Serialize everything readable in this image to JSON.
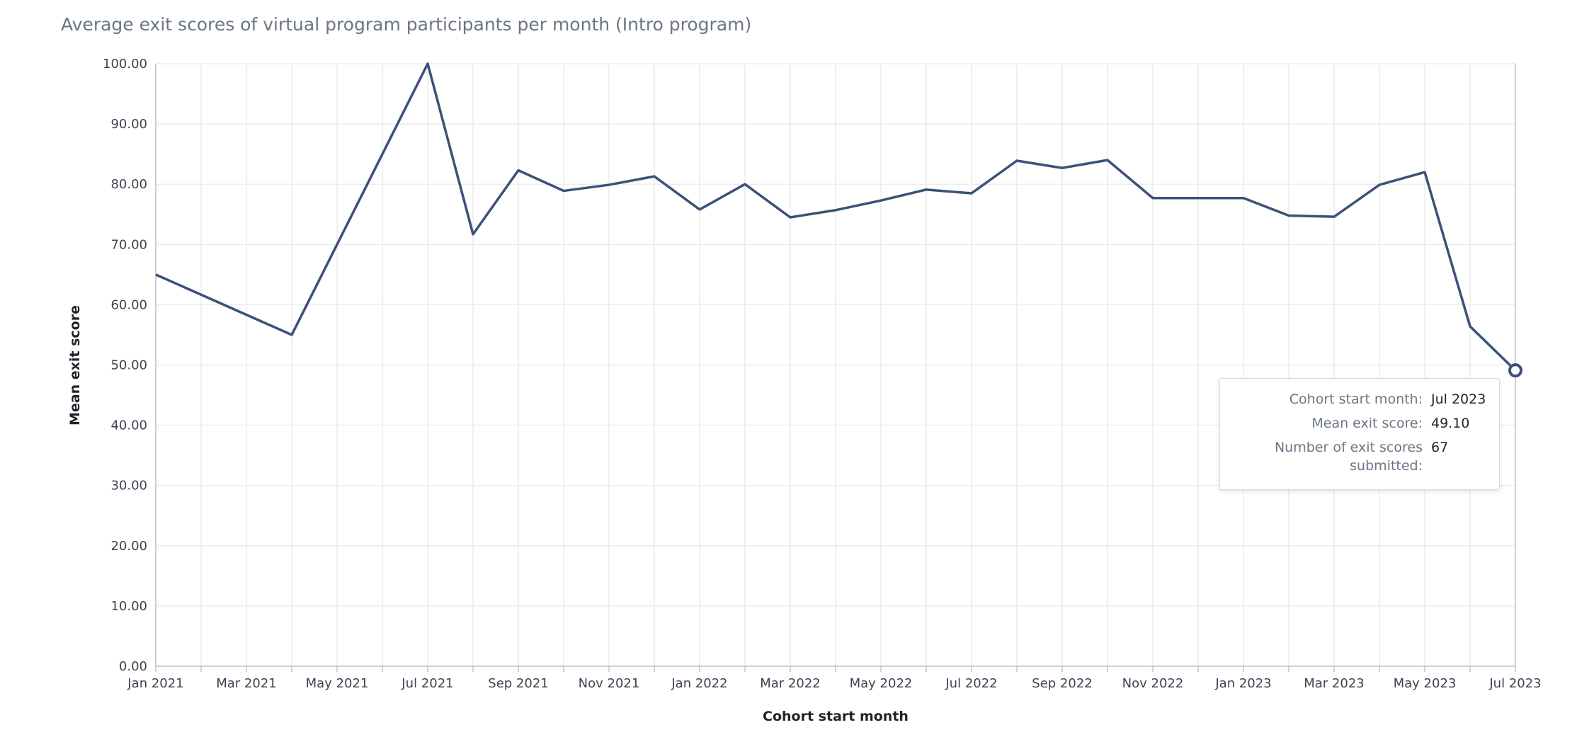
{
  "chart_data": {
    "type": "line",
    "title": "Average exit scores of virtual program participants per month (Intro program)",
    "xlabel": "Cohort start month",
    "ylabel": "Mean exit score",
    "ylim": [
      0,
      100
    ],
    "y_ticks": [
      "0.00",
      "10.00",
      "20.00",
      "30.00",
      "40.00",
      "50.00",
      "60.00",
      "70.00",
      "80.00",
      "90.00",
      "100.00"
    ],
    "x_ticks": [
      "Jan 2021",
      "Mar 2021",
      "May 2021",
      "Jul 2021",
      "Sep 2021",
      "Nov 2021",
      "Jan 2022",
      "Mar 2022",
      "May 2022",
      "Jul 2022",
      "Sep 2022",
      "Nov 2022",
      "Jan 2023",
      "Mar 2023",
      "May 2023",
      "Jul 2023"
    ],
    "x": [
      "Jan 2021",
      "Apr 2021",
      "Jul 2021",
      "Aug 2021",
      "Sep 2021",
      "Oct 2021",
      "Nov 2021",
      "Dec 2021",
      "Jan 2022",
      "Feb 2022",
      "Mar 2022",
      "Apr 2022",
      "May 2022",
      "Jun 2022",
      "Jul 2022",
      "Aug 2022",
      "Sep 2022",
      "Oct 2022",
      "Nov 2022",
      "Dec 2022",
      "Jan 2023",
      "Feb 2023",
      "Mar 2023",
      "Apr 2023",
      "May 2023",
      "Jun 2023",
      "Jul 2023"
    ],
    "series": [
      {
        "values": [
          65.0,
          55.0,
          100.0,
          71.7,
          82.3,
          78.9,
          79.9,
          81.3,
          75.8,
          80.0,
          74.5,
          75.7,
          77.3,
          79.1,
          78.5,
          83.9,
          82.7,
          84.0,
          77.7,
          77.7,
          77.7,
          74.8,
          74.6,
          79.9,
          82.0,
          56.4,
          49.1
        ],
        "color": "#3b5178"
      }
    ],
    "grid": true,
    "tooltip": {
      "rows": [
        {
          "label": "Cohort start month:",
          "value": "Jul 2023"
        },
        {
          "label": "Mean exit score:",
          "value": "49.10"
        },
        {
          "label": "Number of exit scores",
          "label2": "submitted:",
          "value": "67"
        }
      ]
    }
  }
}
